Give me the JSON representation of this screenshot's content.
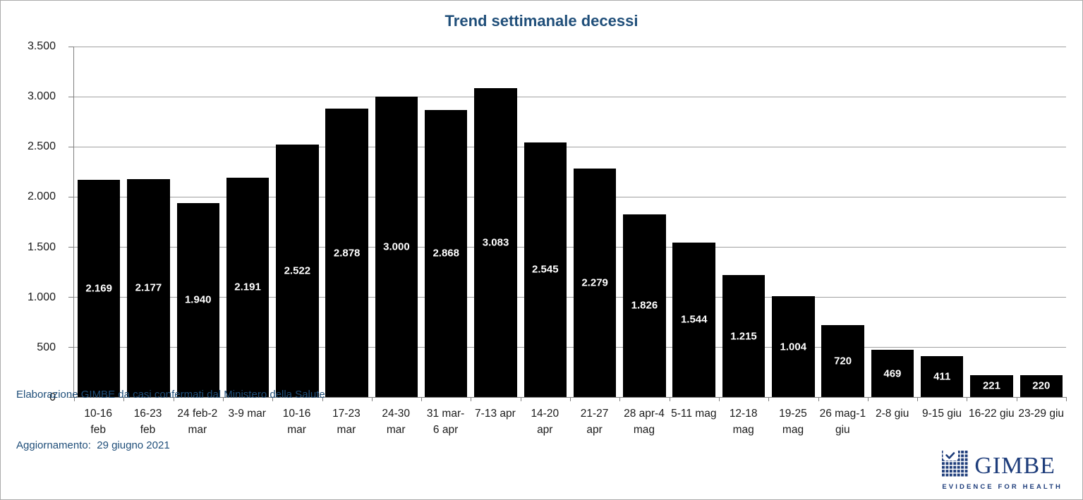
{
  "title": "Trend settimanale decessi",
  "chart_data": {
    "type": "bar",
    "title": "Trend settimanale decessi",
    "categories": [
      "10-16\nfeb",
      "16-23\nfeb",
      "24 feb-2\nmar",
      "3-9 mar",
      "10-16\nmar",
      "17-23\nmar",
      "24-30\nmar",
      "31 mar-\n6 apr",
      "7-13 apr",
      "14-20\napr",
      "21-27\napr",
      "28 apr-4\nmag",
      "5-11 mag",
      "12-18\nmag",
      "19-25\nmag",
      "26 mag-1\ngiu",
      "2-8 giu",
      "9-15 giu",
      "16-22 giu",
      "23-29 giu"
    ],
    "values": [
      2169,
      2177,
      1940,
      2191,
      2522,
      2878,
      3000,
      2868,
      3083,
      2545,
      2279,
      1826,
      1544,
      1215,
      1004,
      720,
      469,
      411,
      221,
      220
    ],
    "value_labels": [
      "2.169",
      "2.177",
      "1.940",
      "2.191",
      "2.522",
      "2.878",
      "3.000",
      "2.868",
      "3.083",
      "2.545",
      "2.279",
      "1.826",
      "1.544",
      "1.215",
      "1.004",
      "720",
      "469",
      "411",
      "221",
      "220"
    ],
    "ylim": [
      0,
      3500
    ],
    "yticks": [
      "3.500",
      "3.000",
      "2.500",
      "2.000",
      "1.500",
      "1.000",
      "500",
      "0"
    ],
    "xlabel": "",
    "ylabel": "",
    "grid": "horizontal",
    "legend": "none",
    "bar_color": "#000000",
    "value_label_color": "#ffffff"
  },
  "footer": {
    "source_line": "Elaborazione GIMBE da casi confermati dal Ministero della Salute",
    "update_line": "Aggiornamento:  29 giugno 2021"
  },
  "logo": {
    "name": "GIMBE",
    "tagline": "EVIDENCE FOR HEALTH"
  },
  "colors": {
    "title_blue": "#1F4E79",
    "bar_black": "#000000",
    "gridline_gray": "#a0a0a0",
    "axis_gray": "#808080",
    "logo_navy": "#1E3D7B"
  }
}
